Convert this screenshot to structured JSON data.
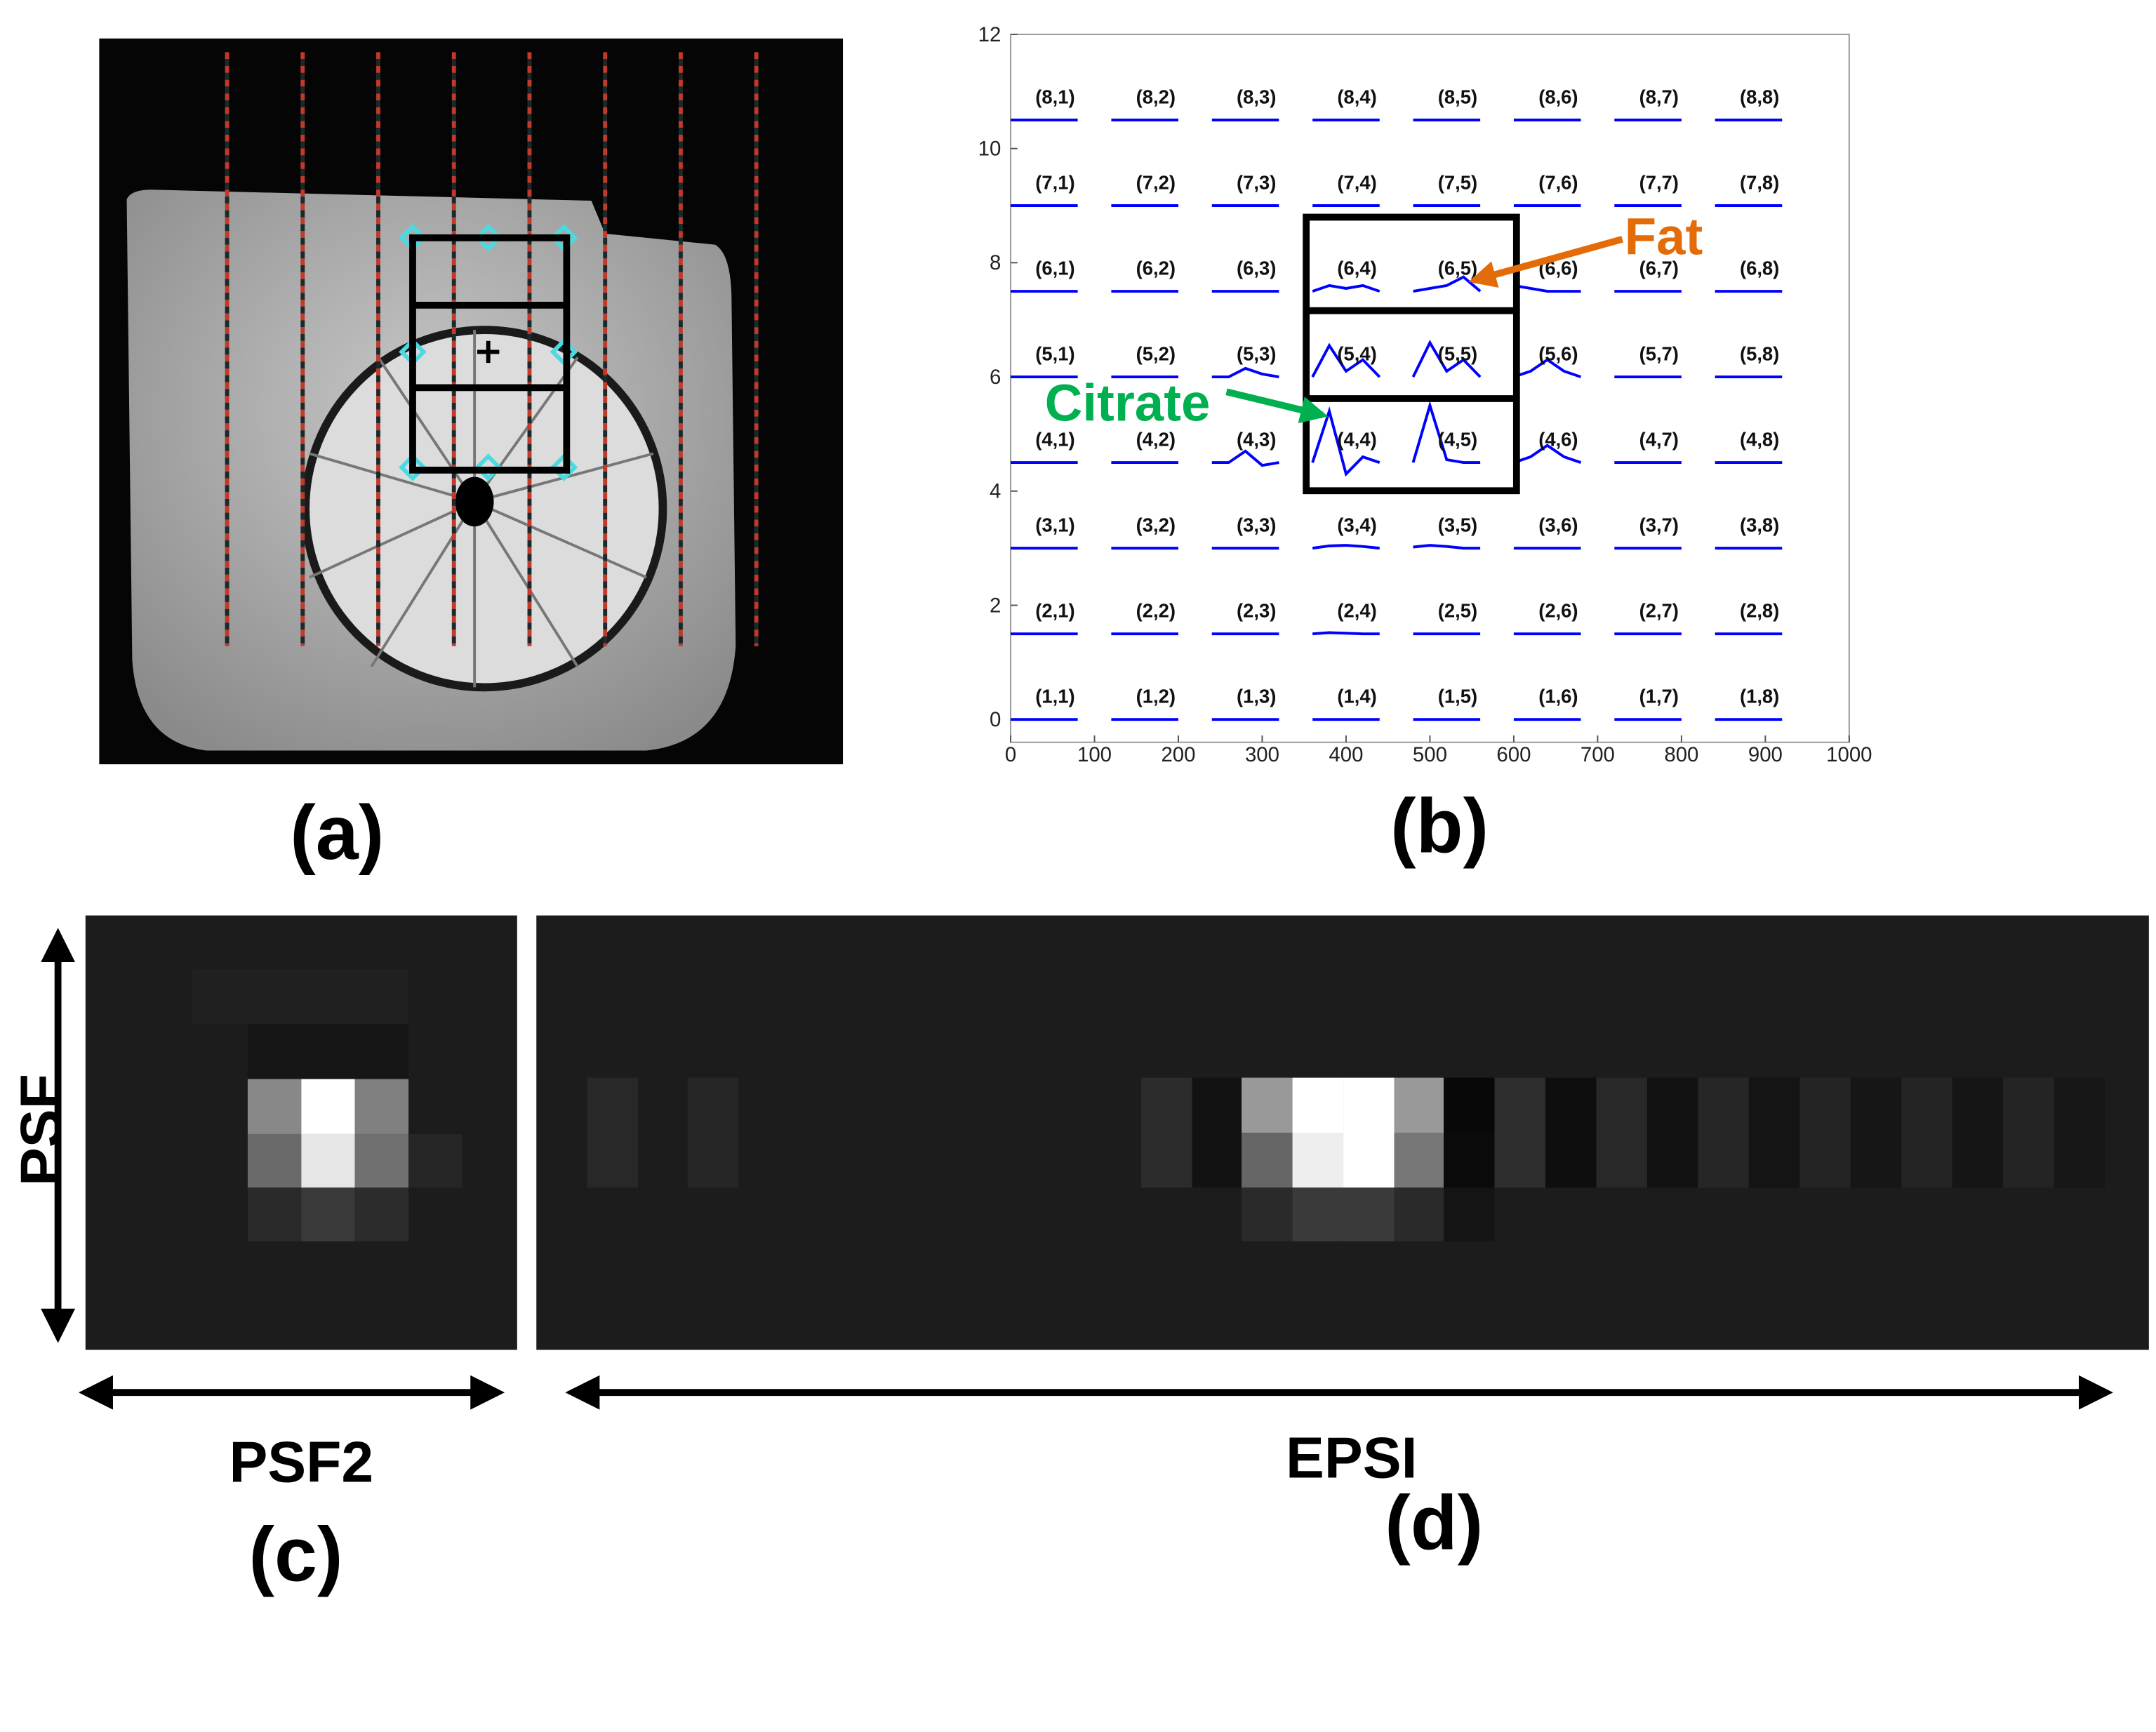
{
  "panels": [
    "(a)",
    "(b)",
    "(c)",
    "(d)"
  ],
  "annotations": {
    "fat": "Fat",
    "citrate": "Citrate",
    "psf": "PSF",
    "psf2": "PSF2",
    "epsi": "EPSI"
  },
  "chart_data": {
    "type": "line",
    "color": "#0000ff",
    "xlim": [
      0,
      1000
    ],
    "xticks": [
      0,
      100,
      200,
      300,
      400,
      500,
      600,
      700,
      800,
      900,
      1000
    ],
    "ylim": [
      -0.4,
      12
    ],
    "yticks": [
      0,
      2,
      4,
      6,
      8,
      10,
      12
    ],
    "x": [
      0,
      20,
      40,
      60,
      80,
      100,
      120,
      140,
      160,
      180,
      200,
      220,
      240,
      260,
      280,
      300,
      320,
      340,
      360,
      380,
      400,
      420,
      440,
      460,
      480,
      500,
      520,
      540,
      560,
      580,
      600,
      620,
      640,
      660,
      680,
      700,
      720,
      740,
      760,
      780,
      800,
      820,
      840,
      860,
      880,
      900,
      920
    ],
    "series": [
      {
        "values": [
          0,
          0,
          0,
          0,
          0,
          null,
          0,
          0,
          0,
          0,
          0,
          null,
          0,
          0,
          0,
          0,
          0,
          null,
          0,
          0,
          0,
          0,
          0,
          null,
          0,
          0,
          0,
          0,
          0,
          null,
          0,
          0,
          0,
          0,
          0,
          null,
          0,
          0,
          0,
          0,
          0,
          null,
          0,
          0,
          0,
          0,
          0
        ]
      },
      {
        "values": [
          1.5,
          1.5,
          1.5,
          1.5,
          1.5,
          null,
          1.5,
          1.5,
          1.5,
          1.5,
          1.5,
          null,
          1.5,
          1.5,
          1.5,
          1.5,
          1.5,
          null,
          1.5,
          1.52,
          1.51,
          1.5,
          1.5,
          null,
          1.5,
          1.5,
          1.5,
          1.5,
          1.5,
          null,
          1.5,
          1.5,
          1.5,
          1.5,
          1.5,
          null,
          1.5,
          1.5,
          1.5,
          1.5,
          1.5,
          null,
          1.5,
          1.5,
          1.5,
          1.5,
          1.5
        ]
      },
      {
        "values": [
          3,
          3,
          3,
          3,
          3,
          null,
          3,
          3,
          3,
          3,
          3,
          null,
          3,
          3,
          3,
          3,
          3,
          null,
          3,
          3.04,
          3.05,
          3.03,
          3,
          null,
          3.02,
          3.05,
          3.03,
          3,
          3,
          null,
          3,
          3,
          3,
          3,
          3,
          null,
          3,
          3,
          3,
          3,
          3,
          null,
          3,
          3,
          3,
          3,
          3
        ]
      },
      {
        "values": [
          4.5,
          4.5,
          4.5,
          4.5,
          4.5,
          null,
          4.5,
          4.5,
          4.5,
          4.5,
          4.5,
          null,
          4.5,
          4.5,
          4.7,
          4.45,
          4.5,
          null,
          4.5,
          5.4,
          4.3,
          4.6,
          4.5,
          null,
          4.5,
          5.5,
          4.55,
          4.5,
          4.5,
          null,
          4.5,
          4.6,
          4.8,
          4.6,
          4.5,
          null,
          4.5,
          4.5,
          4.5,
          4.5,
          4.5,
          null,
          4.5,
          4.5,
          4.5,
          4.5,
          4.5
        ]
      },
      {
        "values": [
          6,
          6,
          6,
          6,
          6,
          null,
          6,
          6,
          6,
          6,
          6,
          null,
          6,
          6,
          6.15,
          6.05,
          6,
          null,
          6,
          6.55,
          6.1,
          6.3,
          6,
          null,
          6,
          6.6,
          6.1,
          6.3,
          6,
          null,
          6,
          6.1,
          6.3,
          6.1,
          6,
          null,
          6,
          6,
          6,
          6,
          6,
          null,
          6,
          6,
          6,
          6,
          6
        ]
      },
      {
        "values": [
          7.5,
          7.5,
          7.5,
          7.5,
          7.5,
          null,
          7.5,
          7.5,
          7.5,
          7.5,
          7.5,
          null,
          7.5,
          7.5,
          7.5,
          7.5,
          7.5,
          null,
          7.5,
          7.6,
          7.55,
          7.6,
          7.5,
          null,
          7.5,
          7.55,
          7.6,
          7.75,
          7.5,
          null,
          7.6,
          7.55,
          7.5,
          7.5,
          7.5,
          null,
          7.5,
          7.5,
          7.5,
          7.5,
          7.5,
          null,
          7.5,
          7.5,
          7.5,
          7.5,
          7.5
        ]
      },
      {
        "values": [
          9,
          9,
          9,
          9,
          9,
          null,
          9,
          9,
          9,
          9,
          9,
          null,
          9,
          9,
          9,
          9,
          9,
          null,
          9,
          9,
          9,
          9,
          9,
          null,
          9,
          9,
          9,
          9,
          9,
          null,
          9,
          9,
          9,
          9,
          9,
          null,
          9,
          9,
          9,
          9,
          9,
          null,
          9,
          9,
          9,
          9,
          9
        ]
      },
      {
        "values": [
          10.5,
          10.5,
          10.5,
          10.5,
          10.5,
          null,
          10.5,
          10.5,
          10.5,
          10.5,
          10.5,
          null,
          10.5,
          10.5,
          10.5,
          10.5,
          10.5,
          null,
          10.5,
          10.5,
          10.5,
          10.5,
          10.5,
          null,
          10.5,
          10.5,
          10.5,
          10.5,
          10.5,
          null,
          10.5,
          10.5,
          10.5,
          10.5,
          10.5,
          null,
          10.5,
          10.5,
          10.5,
          10.5,
          10.5,
          null,
          10.5,
          10.5,
          10.5,
          10.5,
          10.5
        ]
      }
    ],
    "cell_labels": [
      [
        "(1,1)",
        "(1,2)",
        "(1,3)",
        "(1,4)",
        "(1,5)",
        "(1,6)",
        "(1,7)",
        "(1,8)"
      ],
      [
        "(2,1)",
        "(2,2)",
        "(2,3)",
        "(2,4)",
        "(2,5)",
        "(2,6)",
        "(2,7)",
        "(2,8)"
      ],
      [
        "(3,1)",
        "(3,2)",
        "(3,3)",
        "(3,4)",
        "(3,5)",
        "(3,6)",
        "(3,7)",
        "(3,8)"
      ],
      [
        "(4,1)",
        "(4,2)",
        "(4,3)",
        "(4,4)",
        "(4,5)",
        "(4,6)",
        "(4,7)",
        "(4,8)"
      ],
      [
        "(5,1)",
        "(5,2)",
        "(5,3)",
        "(5,4)",
        "(5,5)",
        "(5,6)",
        "(5,7)",
        "(5,8)"
      ],
      [
        "(6,1)",
        "(6,2)",
        "(6,3)",
        "(6,4)",
        "(6,5)",
        "(6,6)",
        "(6,7)",
        "(6,8)"
      ],
      [
        "(7,1)",
        "(7,2)",
        "(7,3)",
        "(7,4)",
        "(7,5)",
        "(7,6)",
        "(7,7)",
        "(7,8)"
      ],
      [
        "(8,1)",
        "(8,2)",
        "(8,3)",
        "(8,4)",
        "(8,5)",
        "(8,6)",
        "(8,7)",
        "(8,8)"
      ]
    ]
  }
}
